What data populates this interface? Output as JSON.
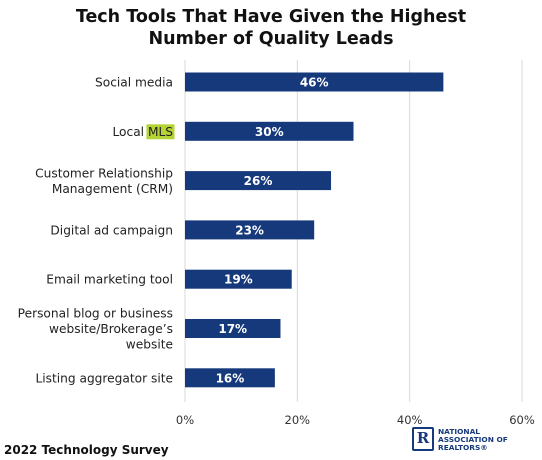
{
  "chart_data": {
    "type": "bar",
    "orientation": "horizontal",
    "title_lines": [
      "Tech Tools That Have Given the Highest",
      "Number of Quality Leads"
    ],
    "categories": [
      "Social media",
      "Local MLS",
      "Customer Relationship Management (CRM)",
      "Digital ad campaign",
      "Email marketing tool",
      "Personal blog or business website/Brokerage’s website",
      "Listing aggregator site"
    ],
    "category_lines": [
      [
        "Social media"
      ],
      [
        "Local MLS"
      ],
      [
        "Customer Relationship",
        "Management (CRM)"
      ],
      [
        "Digital ad campaign"
      ],
      [
        "Email marketing tool"
      ],
      [
        "Personal blog or business",
        "website/Brokerage’s",
        "website"
      ],
      [
        "Listing aggregator site"
      ]
    ],
    "highlight": {
      "category_index": 1,
      "text": "MLS",
      "color": "#b5d334"
    },
    "values": [
      46,
      30,
      26,
      23,
      19,
      17,
      16
    ],
    "data_labels": [
      "46%",
      "30%",
      "26%",
      "23%",
      "19%",
      "17%",
      "16%"
    ],
    "xlim": [
      0,
      60
    ],
    "xticks": [
      0,
      20,
      40,
      60
    ],
    "xtick_labels": [
      "0%",
      "20%",
      "40%",
      "60%"
    ],
    "xlabel": "",
    "ylabel": "",
    "grid": "vertical",
    "legend": "none",
    "bar_color": "#16397c",
    "grid_color": "#d9d9d9"
  },
  "footer": {
    "source": "2022 Technology Survey",
    "logo": {
      "mark": "R",
      "lines": [
        "NATIONAL",
        "ASSOCIATION OF",
        "REALTORS®"
      ],
      "color": "#16397c"
    }
  }
}
